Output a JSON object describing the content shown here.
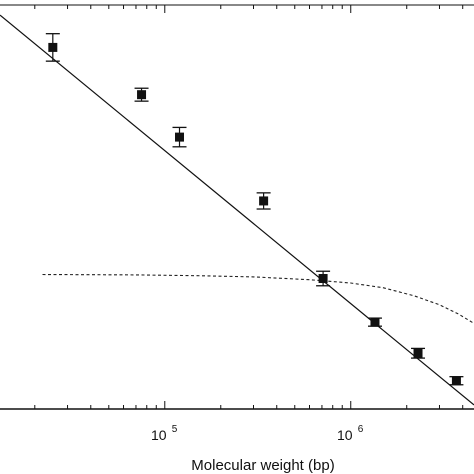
{
  "chart_data": {
    "type": "scatter",
    "title": "",
    "xlabel": "Molecular weight (bp)",
    "ylabel": "",
    "xscale": "log",
    "xlim": [
      13000,
      4600000
    ],
    "ylim": [
      0,
      1
    ],
    "grid": false,
    "legend": "none",
    "x_tick_labels": [
      {
        "value": 100000,
        "base": "10",
        "exp": "5"
      },
      {
        "value": 1000000,
        "base": "10",
        "exp": "6"
      }
    ],
    "series": [
      {
        "style": "markers-with-error-bars",
        "marker": "square",
        "x": [
          25000,
          75000,
          120000,
          340000,
          710000,
          1350000,
          2300000,
          3700000
        ],
        "y": [
          0.895,
          0.778,
          0.673,
          0.515,
          0.323,
          0.215,
          0.138,
          0.07
        ],
        "yerr": [
          0.034,
          0.016,
          0.024,
          0.02,
          0.018,
          0.01,
          0.012,
          0.01
        ]
      },
      {
        "style": "solid-line",
        "x": [
          13000,
          4600000
        ],
        "y": [
          0.975,
          0.01
        ]
      },
      {
        "style": "dashed-curve",
        "x": [
          22000,
          70000,
          150000,
          300000,
          600000,
          1000000,
          1500000,
          2200000,
          3000000,
          3800000,
          4600000
        ],
        "y": [
          0.333,
          0.332,
          0.33,
          0.327,
          0.32,
          0.312,
          0.3,
          0.28,
          0.258,
          0.235,
          0.212
        ]
      }
    ]
  }
}
